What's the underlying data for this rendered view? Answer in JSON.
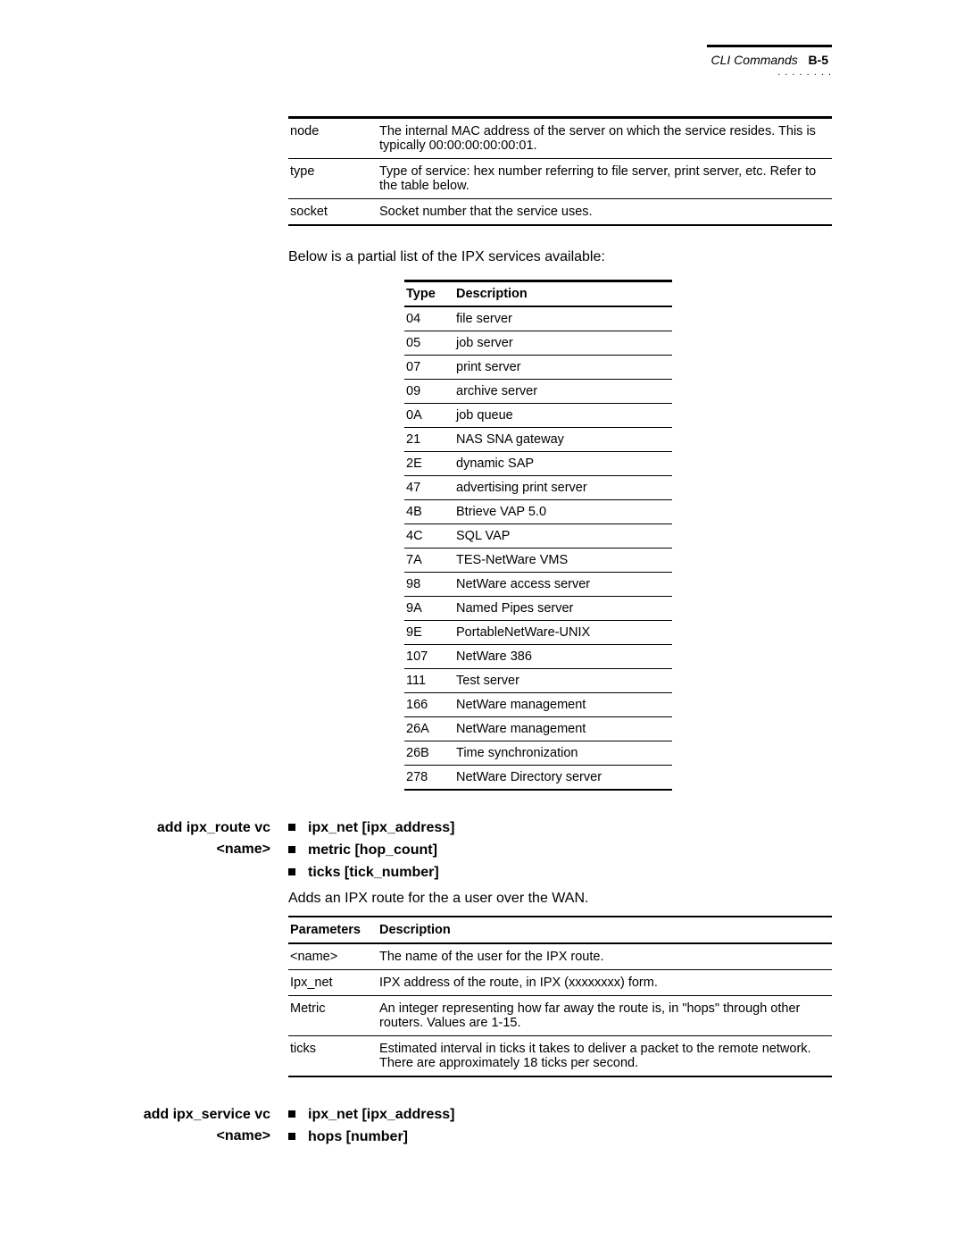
{
  "header": {
    "breadcrumb": "CLI Commands",
    "page": "B-5"
  },
  "top_table": {
    "rows": [
      {
        "k": "node",
        "v": "The internal MAC address of the server on which the service resides. This is typically 00:00:00:00:00:01."
      },
      {
        "k": "type",
        "v": "Type of service: hex number referring to file server, print server, etc. Refer to the table below."
      },
      {
        "k": "socket",
        "v": "Socket number that the service uses."
      }
    ]
  },
  "intro_text": "Below is a partial list of the IPX services available:",
  "type_table": {
    "headers": {
      "c1": "Type",
      "c2": "Description"
    },
    "rows": [
      {
        "c1": "04",
        "c2": "file server"
      },
      {
        "c1": "05",
        "c2": "job server"
      },
      {
        "c1": "07",
        "c2": "print server"
      },
      {
        "c1": "09",
        "c2": "archive server"
      },
      {
        "c1": "0A",
        "c2": "job queue"
      },
      {
        "c1": "21",
        "c2": "NAS SNA gateway"
      },
      {
        "c1": "2E",
        "c2": "dynamic SAP"
      },
      {
        "c1": "47",
        "c2": "advertising print server"
      },
      {
        "c1": "4B",
        "c2": "Btrieve VAP 5.0"
      },
      {
        "c1": "4C",
        "c2": "SQL VAP"
      },
      {
        "c1": "7A",
        "c2": "TES-NetWare VMS"
      },
      {
        "c1": "98",
        "c2": "NetWare access server"
      },
      {
        "c1": "9A",
        "c2": "Named Pipes server"
      },
      {
        "c1": "9E",
        "c2": "PortableNetWare-UNIX"
      },
      {
        "c1": "107",
        "c2": "NetWare 386"
      },
      {
        "c1": "111",
        "c2": "Test server"
      },
      {
        "c1": "166",
        "c2": "NetWare management"
      },
      {
        "c1": "26A",
        "c2": "NetWare management"
      },
      {
        "c1": "26B",
        "c2": "Time synchronization"
      },
      {
        "c1": "278",
        "c2": "NetWare Directory server"
      }
    ]
  },
  "section1": {
    "title_l1": "add ipx_route vc",
    "title_l2": "<name>",
    "bullets": [
      "ipx_net [ipx_address]",
      "metric [hop_count]",
      "ticks [tick_number]"
    ],
    "desc": "Adds an IPX route for the a user over the WAN.",
    "table": {
      "headers": {
        "c1": "Parameters",
        "c2": "Description"
      },
      "rows": [
        {
          "c1": "<name>",
          "c2": "The name of the user for the IPX route."
        },
        {
          "c1": "Ipx_net",
          "c2": "IPX address of the route, in IPX (xxxxxxxx) form."
        },
        {
          "c1": "Metric",
          "c2": "An integer representing how far away the route is, in \"hops\" through other routers. Values are 1-15."
        },
        {
          "c1": "ticks",
          "c2": "Estimated interval in ticks it takes to deliver a packet to the remote network. There are approximately 18 ticks per second."
        }
      ]
    }
  },
  "section2": {
    "title_l1": "add ipx_service vc",
    "title_l2": "<name>",
    "bullets": [
      "ipx_net [ipx_address]",
      "hops [number]"
    ]
  }
}
